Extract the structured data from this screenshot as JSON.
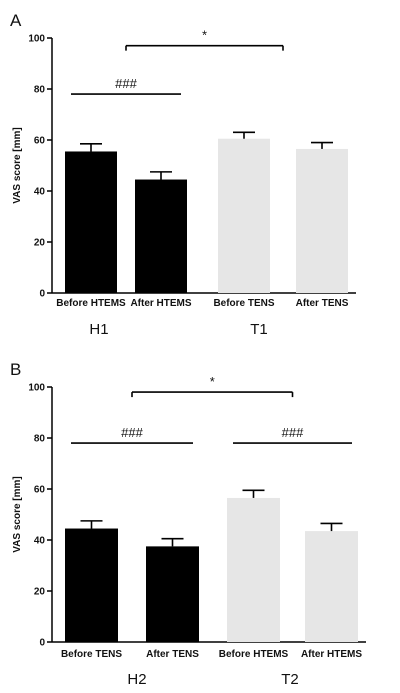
{
  "chart_data": [
    {
      "type": "bar",
      "panel": "A",
      "ylabel": "VAS score [mm]",
      "ylim": [
        0,
        100
      ],
      "yticks": [
        0,
        20,
        40,
        60,
        80,
        100
      ],
      "categories": [
        "Before HTEMS",
        "After HTEMS",
        "Before TENS",
        "After TENS"
      ],
      "values": [
        55.5,
        44.5,
        60.5,
        56.5
      ],
      "errors": [
        3,
        3,
        2.5,
        2.5
      ],
      "colors": [
        "#000000",
        "#000000",
        "#e6e6e6",
        "#e6e6e6"
      ],
      "groups": [
        {
          "label": "H1",
          "categories": [
            0,
            1
          ]
        },
        {
          "label": "T1",
          "categories": [
            2,
            3
          ]
        }
      ],
      "annotations": [
        {
          "text": "###",
          "from": 0,
          "to": 1,
          "y": 78
        },
        {
          "text": "*",
          "from": 0.5,
          "to": 2.5,
          "y": 97
        }
      ],
      "grid": false
    },
    {
      "type": "bar",
      "panel": "B",
      "ylabel": "VAS score [mm]",
      "ylim": [
        0,
        100
      ],
      "yticks": [
        0,
        20,
        40,
        60,
        80,
        100
      ],
      "categories": [
        "Before TENS",
        "After TENS",
        "Before HTEMS",
        "After HTEMS"
      ],
      "values": [
        44.5,
        37.5,
        56.5,
        43.5
      ],
      "errors": [
        3,
        3,
        3,
        3
      ],
      "colors": [
        "#000000",
        "#000000",
        "#e6e6e6",
        "#e6e6e6"
      ],
      "groups": [
        {
          "label": "H2",
          "categories": [
            0,
            1
          ]
        },
        {
          "label": "T2",
          "categories": [
            2,
            3
          ]
        }
      ],
      "annotations": [
        {
          "text": "###",
          "from": 0,
          "to": 1,
          "y": 78
        },
        {
          "text": "###",
          "from": 2,
          "to": 3,
          "y": 78
        },
        {
          "text": "*",
          "from": 0.5,
          "to": 2.5,
          "y": 98
        }
      ],
      "grid": false
    }
  ]
}
